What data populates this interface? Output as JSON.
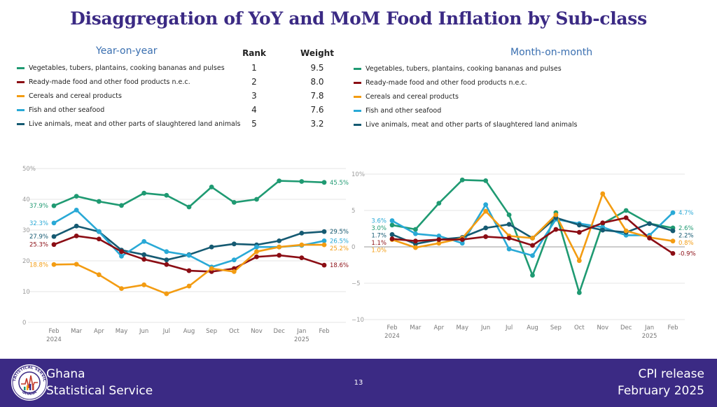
{
  "title": "Disaggregation of YoY and MoM Food Inflation by Sub-class",
  "yoy_heading": "Year-on-year",
  "mom_heading": "Month-on-month",
  "legend": [
    {
      "label": "Vegetables, tubers, plantains, cooking bananas and pulses",
      "color": "#1f9a72"
    },
    {
      "label": "Ready-made food and other food products n.e.c.",
      "color": "#8b0d14"
    },
    {
      "label": "Cereals and cereal products",
      "color": "#f39c12"
    },
    {
      "label": "Fish and other seafood",
      "color": "#29a9d6"
    },
    {
      "label": "Live animals, meat and other parts of slaughtered land animals",
      "color": "#155a72"
    }
  ],
  "rank_table": {
    "rank_header": "Rank",
    "weight_header": "Weight",
    "ranks": [
      "1",
      "2",
      "3",
      "4",
      "5"
    ],
    "weights": [
      "9.5",
      "8.0",
      "7.8",
      "7.6",
      "3.2"
    ]
  },
  "footer": {
    "org_line1": "Ghana",
    "org_line2": "Statistical Service",
    "page": "13",
    "release_line1": "CPI release",
    "release_line2": "February  2025",
    "logo_top_text": "STATISTICAL SERVICE",
    "logo_bottom_text": "GHANA"
  },
  "chart_data": [
    {
      "type": "line",
      "title": "Year-on-year",
      "categories": [
        "Feb",
        "Mar",
        "Apr",
        "May",
        "Jun",
        "Jul",
        "Aug",
        "Sep",
        "Oct",
        "Nov",
        "Dec",
        "Jan",
        "Feb"
      ],
      "year_labels": {
        "0": "2024",
        "11": "2025"
      },
      "yticks": [
        0,
        10,
        20,
        30,
        40,
        50
      ],
      "ytick_labels": [
        "0",
        "10",
        "20",
        "30",
        "40",
        "50%"
      ],
      "ylim": [
        0,
        50
      ],
      "series": [
        {
          "name": "Vegetables, tubers, plantains, cooking bananas and pulses",
          "color": "#1f9a72",
          "values": [
            37.9,
            41.0,
            39.3,
            38.0,
            42.0,
            41.3,
            37.5,
            44.0,
            39.0,
            40.0,
            46.0,
            45.8,
            45.5
          ],
          "start_label": "37.9%",
          "end_label": "45.5%"
        },
        {
          "name": "Live animals, meat and other parts of slaughtered land animals",
          "color": "#155a72",
          "values": [
            27.9,
            31.3,
            29.5,
            23.5,
            22.0,
            20.3,
            22.0,
            24.5,
            25.5,
            25.2,
            26.5,
            29.0,
            29.5
          ],
          "start_label": "27.9%",
          "end_label": "29.5%"
        },
        {
          "name": "Fish and other seafood",
          "color": "#29a9d6",
          "values": [
            32.3,
            36.5,
            29.5,
            21.5,
            26.3,
            23.0,
            21.8,
            18.0,
            20.3,
            24.5,
            24.5,
            25.0,
            26.5
          ],
          "start_label": "32.3%",
          "end_label": "26.5%"
        },
        {
          "name": "Ready-made food and other food products n.e.c.",
          "color": "#8b0d14",
          "values": [
            25.3,
            28.1,
            27.1,
            23.0,
            20.5,
            18.8,
            16.8,
            16.5,
            17.5,
            21.3,
            21.8,
            21.0,
            18.6
          ],
          "start_label": "25.3%",
          "end_label": "18.6%"
        },
        {
          "name": "Cereals and cereal products",
          "color": "#f39c12",
          "values": [
            18.8,
            18.9,
            15.5,
            11.0,
            12.2,
            9.3,
            11.8,
            17.5,
            16.5,
            23.0,
            24.5,
            25.2,
            25.2
          ],
          "start_label": "18.8%",
          "end_label": "25.2%"
        }
      ]
    },
    {
      "type": "line",
      "title": "Month-on-month",
      "categories": [
        "Feb",
        "Mar",
        "Apr",
        "May",
        "Jun",
        "Jul",
        "Aug",
        "Sep",
        "Oct",
        "Nov",
        "Dec",
        "Jan",
        "Feb"
      ],
      "year_labels": {
        "0": "2024",
        "11": "2025"
      },
      "yticks": [
        -10,
        -5,
        0,
        5,
        10
      ],
      "ytick_labels": [
        "−10",
        "−5",
        "0",
        "5",
        "10%"
      ],
      "ylim": [
        -10,
        10
      ],
      "series": [
        {
          "name": "Vegetables, tubers, plantains, cooking bananas and pulses",
          "color": "#1f9a72",
          "values": [
            3.0,
            2.4,
            6.0,
            9.2,
            9.1,
            4.4,
            -3.9,
            4.7,
            -6.3,
            3.2,
            5.0,
            3.2,
            2.6
          ],
          "start_label": "3.0%",
          "end_label": "2.6%"
        },
        {
          "name": "Fish and other seafood",
          "color": "#29a9d6",
          "values": [
            3.6,
            1.8,
            1.5,
            0.5,
            5.8,
            -0.3,
            -1.2,
            3.8,
            3.2,
            2.7,
            1.6,
            1.6,
            4.7
          ],
          "start_label": "3.6%",
          "end_label": "4.7%"
        },
        {
          "name": "Live animals, meat and other parts of slaughtered land animals",
          "color": "#155a72",
          "values": [
            1.7,
            0.4,
            1.0,
            1.3,
            2.6,
            3.1,
            1.2,
            4.0,
            3.0,
            2.3,
            2.0,
            3.2,
            2.2
          ],
          "start_label": "1.7%",
          "end_label": "2.2%"
        },
        {
          "name": "Cereals and cereal products",
          "color": "#f39c12",
          "values": [
            1.0,
            -0.1,
            0.5,
            1.2,
            4.9,
            1.5,
            1.2,
            4.4,
            -1.9,
            7.3,
            2.2,
            1.3,
            0.8
          ],
          "start_label": "1.0%",
          "end_label": "0.8%"
        },
        {
          "name": "Ready-made food and other food products n.e.c.",
          "color": "#8b0d14",
          "values": [
            1.1,
            0.8,
            1.0,
            1.0,
            1.4,
            1.2,
            0.2,
            2.4,
            2.0,
            3.3,
            4.0,
            1.2,
            -0.9
          ],
          "start_label": "1.1%",
          "end_label": "-0.9%"
        }
      ]
    }
  ]
}
